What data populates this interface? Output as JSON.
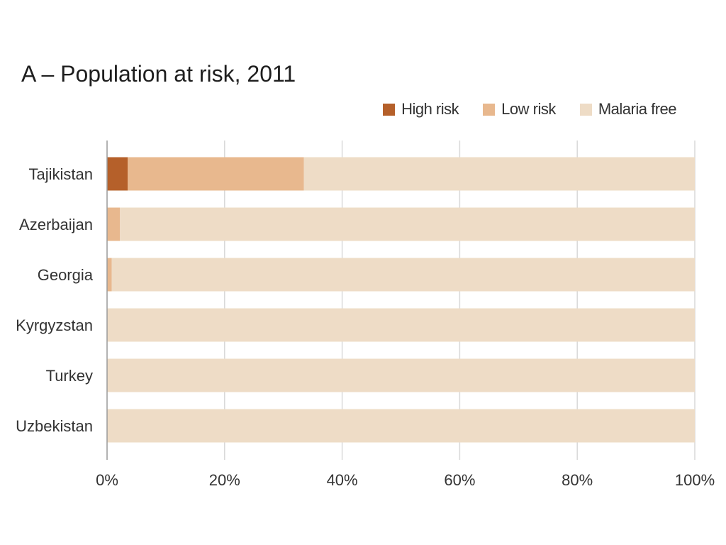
{
  "chart_data": {
    "type": "bar",
    "orientation": "horizontal",
    "stacked": true,
    "title": "A – Population at risk, 2011",
    "categories": [
      "Tajikistan",
      "Azerbaijan",
      "Georgia",
      "Kyrgyzstan",
      "Turkey",
      "Uzbekistan"
    ],
    "series": [
      {
        "name": "High risk",
        "color": "#b5602a",
        "values": [
          3.5,
          0,
          0,
          0,
          0,
          0
        ]
      },
      {
        "name": "Low risk",
        "color": "#e8b88e",
        "values": [
          30,
          2.2,
          0.8,
          0,
          0,
          0
        ]
      },
      {
        "name": "Malaria free",
        "color": "#eedcc6",
        "values": [
          66.5,
          97.8,
          99.2,
          100,
          100,
          100
        ]
      }
    ],
    "xlim": [
      0,
      100
    ],
    "xticks": [
      0,
      20,
      40,
      60,
      80,
      100
    ],
    "xtick_labels": [
      "0%",
      "20%",
      "40%",
      "60%",
      "80%",
      "100%"
    ],
    "xlabel": "",
    "ylabel": "",
    "grid": true,
    "legend_position": "top-right"
  }
}
